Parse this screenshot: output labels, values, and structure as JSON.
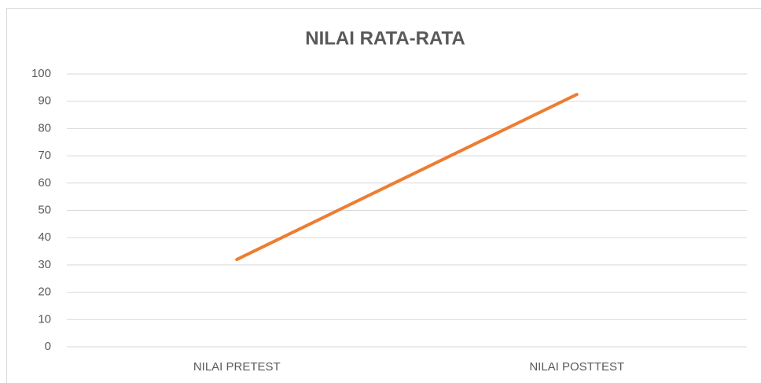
{
  "chart_data": {
    "type": "line",
    "title": "NILAI RATA-RATA",
    "categories": [
      "NILAI PRETEST",
      "NILAI POSTTEST"
    ],
    "series": [
      {
        "name": "NILAI RATA-RATA",
        "color": "#ed7d31",
        "values": [
          32,
          92.5
        ]
      }
    ],
    "ylim": [
      0,
      100
    ],
    "yticks": [
      0,
      10,
      20,
      30,
      40,
      50,
      60,
      70,
      80,
      90,
      100
    ],
    "grid": true
  }
}
